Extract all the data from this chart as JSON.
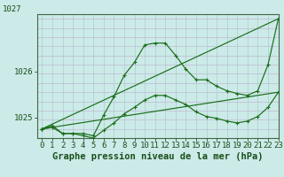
{
  "title": "Graphe pression niveau de la mer (hPa)",
  "xlim": [
    -0.5,
    23
  ],
  "ylim": [
    1024.55,
    1027.25
  ],
  "yticks": [
    1025,
    1026
  ],
  "ytick_labels": [
    "1025",
    "1026"
  ],
  "xticks": [
    0,
    1,
    2,
    3,
    4,
    5,
    6,
    7,
    8,
    9,
    10,
    11,
    12,
    13,
    14,
    15,
    16,
    17,
    18,
    19,
    20,
    21,
    22,
    23
  ],
  "background_color": "#cceae8",
  "grid_color_v": "#b0d8d4",
  "grid_color_h": "#c0b8d0",
  "line_color": "#1a6e1a",
  "lines": [
    {
      "x": [
        0,
        1,
        2,
        3,
        4,
        5,
        6,
        7,
        8,
        9,
        10,
        11,
        12,
        13,
        14,
        15,
        16,
        17,
        18,
        19,
        20,
        21,
        22,
        23
      ],
      "y": [
        1024.75,
        1024.82,
        1024.65,
        1024.65,
        1024.65,
        1024.6,
        1025.05,
        1025.45,
        1025.92,
        1026.2,
        1026.58,
        1026.62,
        1026.62,
        1026.35,
        1026.05,
        1025.82,
        1025.82,
        1025.68,
        1025.58,
        1025.52,
        1025.48,
        1025.58,
        1026.15,
        1027.15
      ]
    },
    {
      "x": [
        0,
        1,
        2,
        3,
        4,
        5,
        6,
        7,
        8,
        9,
        10,
        11,
        12,
        13,
        14,
        15,
        16,
        17,
        18,
        19,
        20,
        21,
        22,
        23
      ],
      "y": [
        1024.75,
        1024.78,
        1024.65,
        1024.65,
        1024.6,
        1024.55,
        1024.72,
        1024.88,
        1025.08,
        1025.22,
        1025.38,
        1025.48,
        1025.48,
        1025.38,
        1025.28,
        1025.12,
        1025.02,
        1024.98,
        1024.92,
        1024.88,
        1024.92,
        1025.02,
        1025.22,
        1025.55
      ]
    },
    {
      "x": [
        0,
        23
      ],
      "y": [
        1024.75,
        1025.55
      ]
    },
    {
      "x": [
        0,
        23
      ],
      "y": [
        1024.75,
        1027.15
      ]
    }
  ],
  "title_fontsize": 7.5,
  "tick_fontsize": 6.5,
  "top_label": "1027"
}
